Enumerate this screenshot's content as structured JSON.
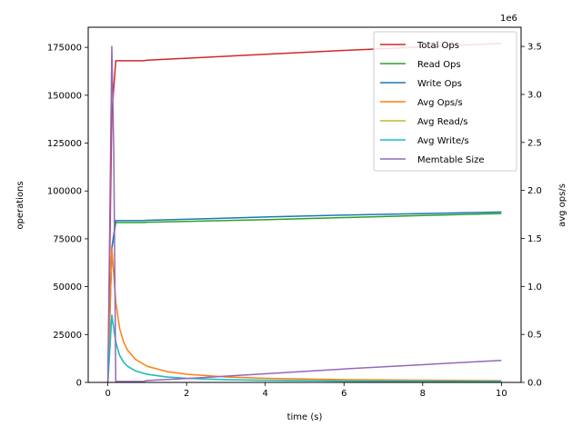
{
  "chart_data": {
    "type": "line",
    "xlabel": "time (s)",
    "ylabel_left": "operations",
    "ylabel_right": "avg ops/s",
    "right_axis_multiplier": "1e6",
    "xlim": [
      -0.5,
      10.5
    ],
    "ylim_left": [
      0,
      185500
    ],
    "ylim_right": [
      0,
      3.7
    ],
    "x_ticks": [
      0,
      2,
      4,
      6,
      8,
      10
    ],
    "y_ticks_left": [
      0,
      25000,
      50000,
      75000,
      100000,
      125000,
      150000,
      175000
    ],
    "y_ticks_right": [
      0.0,
      0.5,
      1.0,
      1.5,
      2.0,
      2.5,
      3.0,
      3.5
    ],
    "legend_position": "top-right",
    "grid": false,
    "series": [
      {
        "name": "Total Ops",
        "color": "#d62728",
        "axis": "left",
        "x": [
          0,
          0.1,
          0.2,
          0.5,
          0.9,
          1.0,
          2,
          4,
          6,
          8,
          10
        ],
        "y": [
          0,
          140000,
          168000,
          168000,
          168000,
          168300,
          169300,
          171400,
          173400,
          175200,
          177100
        ]
      },
      {
        "name": "Read Ops",
        "color": "#2ca02c",
        "axis": "left",
        "x": [
          0,
          0.1,
          0.2,
          0.5,
          0.9,
          1.0,
          2,
          4,
          6,
          8,
          10
        ],
        "y": [
          0,
          70000,
          83500,
          83500,
          83500,
          83700,
          84100,
          85000,
          86100,
          87200,
          88200
        ]
      },
      {
        "name": "Write Ops",
        "color": "#1f77b4",
        "axis": "left",
        "x": [
          0,
          0.1,
          0.2,
          0.5,
          0.9,
          1.0,
          2,
          4,
          6,
          8,
          10
        ],
        "y": [
          0,
          70000,
          84500,
          84500,
          84500,
          84700,
          85200,
          86400,
          87400,
          88200,
          89000
        ]
      },
      {
        "name": "Avg Ops/s",
        "color": "#ff7f0e",
        "axis": "right",
        "x": [
          0,
          0.1,
          0.15,
          0.2,
          0.3,
          0.4,
          0.5,
          0.7,
          1.0,
          1.5,
          2,
          3,
          4,
          6,
          8,
          10
        ],
        "y": [
          0,
          1.4,
          1.12,
          0.84,
          0.56,
          0.42,
          0.336,
          0.24,
          0.168,
          0.112,
          0.085,
          0.057,
          0.043,
          0.029,
          0.022,
          0.0177
        ]
      },
      {
        "name": "Avg Read/s",
        "color": "#bcbd22",
        "axis": "right",
        "x": [
          0,
          0.1,
          0.15,
          0.2,
          0.3,
          0.4,
          0.5,
          0.7,
          1.0,
          1.5,
          2,
          3,
          4,
          6,
          8,
          10
        ],
        "y": [
          0,
          0.7,
          0.56,
          0.42,
          0.28,
          0.21,
          0.167,
          0.12,
          0.084,
          0.056,
          0.042,
          0.028,
          0.021,
          0.014,
          0.011,
          0.0088
        ]
      },
      {
        "name": "Avg Write/s",
        "color": "#17becf",
        "axis": "right",
        "x": [
          0,
          0.1,
          0.15,
          0.2,
          0.3,
          0.4,
          0.5,
          0.7,
          1.0,
          1.5,
          2,
          3,
          4,
          6,
          8,
          10
        ],
        "y": [
          0,
          0.7,
          0.56,
          0.42,
          0.28,
          0.21,
          0.169,
          0.12,
          0.085,
          0.057,
          0.043,
          0.029,
          0.022,
          0.0146,
          0.011,
          0.0089
        ]
      },
      {
        "name": "Memtable Size",
        "color": "#9467bd",
        "axis": "right",
        "x": [
          0,
          0.1,
          0.15,
          0.2,
          0.9,
          1.0,
          2,
          3,
          4,
          6,
          8,
          10
        ],
        "y": [
          0,
          3.5,
          2.4,
          0.01,
          0.01,
          0.02,
          0.04,
          0.065,
          0.09,
          0.14,
          0.185,
          0.23
        ]
      }
    ]
  }
}
